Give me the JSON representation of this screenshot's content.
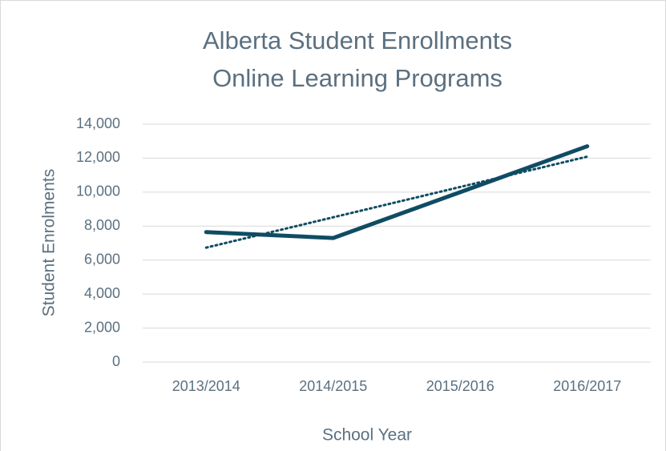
{
  "chart_data": {
    "type": "line",
    "title": [
      "Alberta Student Enrollments",
      "Online Learning Programs"
    ],
    "x_label": "School Year",
    "y_label": "Student Enrolments",
    "categories": [
      "2013/2014",
      "2014/2015",
      "2015/2016",
      "2016/2017"
    ],
    "series": [
      {
        "color": "#0f4c63",
        "values": [
          7650,
          7300,
          10000,
          12700
        ]
      }
    ],
    "trendline": "linear",
    "ylim": [
      0,
      14000
    ],
    "yticks": [
      0,
      {
        "value": 2000,
        "label": "2,000"
      },
      {
        "value": 4000,
        "label": "4,000"
      },
      {
        "value": 6000,
        "label": "6,000"
      },
      {
        "value": 8000,
        "label": "8,000"
      },
      {
        "value": 10000,
        "label": "10,000"
      },
      {
        "value": 12000,
        "label": "12,000"
      },
      {
        "value": 14000,
        "label": "14,000"
      }
    ],
    "grid": true
  }
}
